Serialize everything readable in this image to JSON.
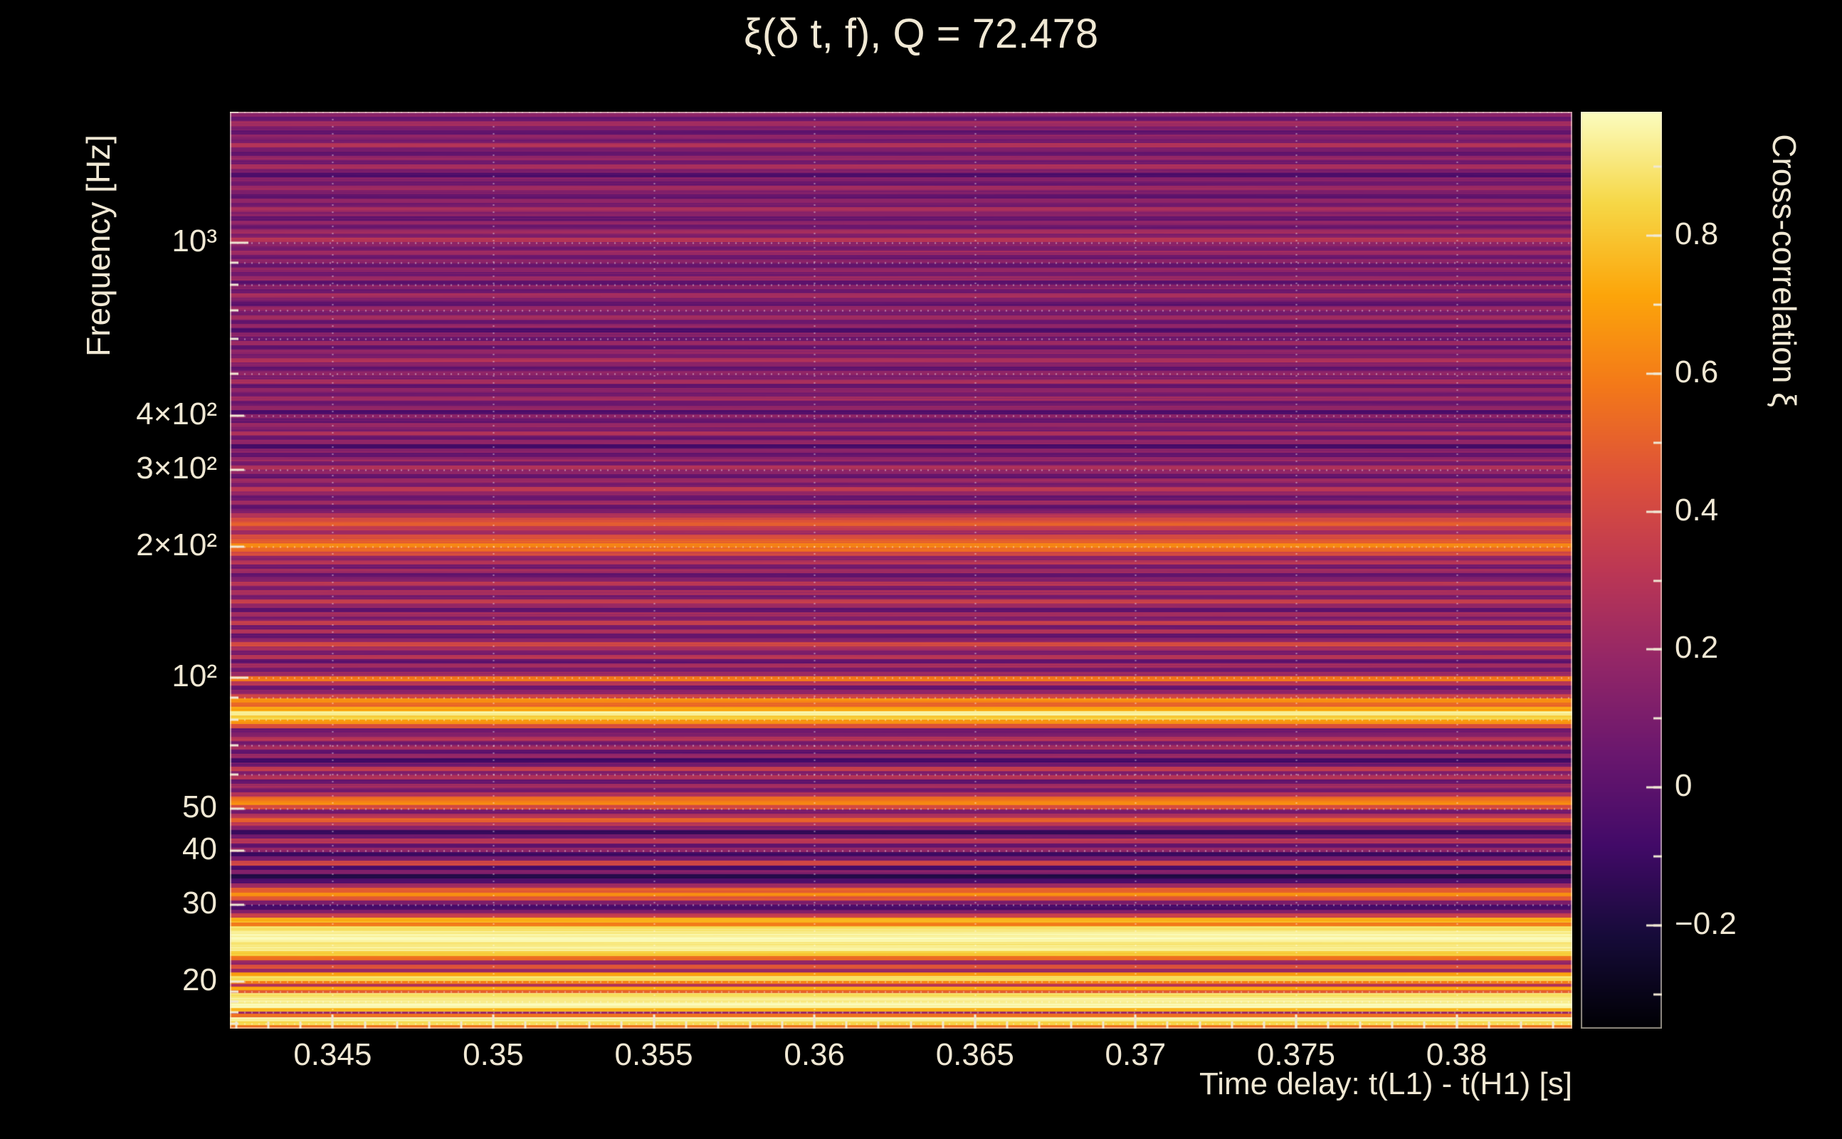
{
  "colors": {
    "background": "#000000",
    "text": "#f0e8d4",
    "grid": "#ffffff",
    "tick": "#f0e8d4"
  },
  "texture": {
    "row_noise": 0.03,
    "x_mod": 0.02
  },
  "chart_data": {
    "type": "heatmap",
    "title": "ξ(δ t, f), Q = 72.478",
    "xlabel": "Time delay: t(L1) - t(H1) [s]",
    "ylabel": "Frequency [Hz]",
    "zlabel": "Cross-correlation ξ",
    "x_range": [
      0.3418,
      0.3836
    ],
    "y_range_hz": [
      15.6,
      2000
    ],
    "y_scale": "log",
    "z_range": [
      -0.35,
      0.98
    ],
    "grid": true,
    "x_tick_values": [
      0.345,
      0.35,
      0.355,
      0.36,
      0.365,
      0.37,
      0.375,
      0.38
    ],
    "x_tick_labels": [
      "0.345",
      "0.35",
      "0.355",
      "0.36",
      "0.365",
      "0.37",
      "0.375",
      "0.38"
    ],
    "x_minor_step": 0.001,
    "y_tick_values": [
      20,
      30,
      40,
      50,
      100,
      200,
      300,
      400,
      1000
    ],
    "y_tick_labels": [
      "20",
      "30",
      "40",
      "50",
      "10²",
      "2×10²",
      "3×10²",
      "4×10²",
      "10³"
    ],
    "y_decades": [
      100,
      1000
    ],
    "y_minor_ticks": [
      16,
      17,
      18,
      19,
      60,
      70,
      80,
      90,
      500,
      600,
      700,
      800,
      900,
      2000
    ],
    "colorbar_tick_values": [
      -0.2,
      0,
      0.2,
      0.4,
      0.6,
      0.8
    ],
    "colorbar_tick_labels": [
      "−0.2",
      "0",
      "0.2",
      "0.4",
      "0.6",
      "0.8"
    ],
    "colorbar_minor_step": 0.1,
    "colormap": {
      "name": "inferno",
      "stops": [
        [
          0.0,
          [
            0,
            0,
            4
          ]
        ],
        [
          0.1,
          [
            22,
            11,
            57
          ]
        ],
        [
          0.2,
          [
            66,
            10,
            104
          ]
        ],
        [
          0.3,
          [
            106,
            23,
            110
          ]
        ],
        [
          0.4,
          [
            147,
            38,
            103
          ]
        ],
        [
          0.5,
          [
            188,
            55,
            84
          ]
        ],
        [
          0.6,
          [
            221,
            81,
            58
          ]
        ],
        [
          0.7,
          [
            243,
            120,
            25
          ]
        ],
        [
          0.8,
          [
            252,
            165,
            10
          ]
        ],
        [
          0.9,
          [
            246,
            215,
            70
          ]
        ],
        [
          1.0,
          [
            251,
            252,
            191
          ]
        ]
      ]
    },
    "profile_note": "cross-correlation xi vs frequency (bands are constant in time delay)",
    "profile": [
      [
        15.6,
        0.55
      ],
      [
        15.9,
        0.85
      ],
      [
        16.2,
        0.95
      ],
      [
        16.6,
        0.55
      ],
      [
        16.9,
        0.2
      ],
      [
        17.1,
        0.75
      ],
      [
        17.4,
        0.97
      ],
      [
        17.9,
        0.93
      ],
      [
        18.4,
        0.88
      ],
      [
        18.8,
        0.5
      ],
      [
        19.1,
        0.72
      ],
      [
        19.5,
        0.28
      ],
      [
        19.8,
        0.6
      ],
      [
        20.1,
        0.88
      ],
      [
        20.6,
        0.68
      ],
      [
        21.0,
        0.22
      ],
      [
        21.4,
        0.45
      ],
      [
        21.9,
        0.18
      ],
      [
        22.4,
        0.55
      ],
      [
        22.9,
        0.82
      ],
      [
        23.5,
        0.95
      ],
      [
        24.1,
        0.9
      ],
      [
        24.7,
        0.97
      ],
      [
        25.4,
        0.94
      ],
      [
        26.1,
        0.88
      ],
      [
        26.8,
        0.58
      ],
      [
        27.4,
        0.75
      ],
      [
        28.1,
        0.35
      ],
      [
        28.7,
        0.12
      ],
      [
        29.3,
        -0.08
      ],
      [
        30.0,
        0.1
      ],
      [
        30.7,
        0.45
      ],
      [
        31.4,
        0.65
      ],
      [
        32.1,
        0.5
      ],
      [
        32.9,
        0.22
      ],
      [
        33.7,
        -0.05
      ],
      [
        34.5,
        -0.18
      ],
      [
        35.3,
        0.12
      ],
      [
        36.1,
        -0.08
      ],
      [
        37.0,
        0.38
      ],
      [
        37.9,
        0.08
      ],
      [
        38.8,
        -0.1
      ],
      [
        39.7,
        0.18
      ],
      [
        40.6,
        0.02
      ],
      [
        41.6,
        0.3
      ],
      [
        42.6,
        0.08
      ],
      [
        43.6,
        -0.12
      ],
      [
        44.6,
        0.15
      ],
      [
        45.6,
        0.32
      ],
      [
        46.6,
        0.5
      ],
      [
        47.6,
        0.28
      ],
      [
        48.7,
        0.1
      ],
      [
        49.8,
        0.42
      ],
      [
        50.9,
        0.62
      ],
      [
        52.1,
        0.55
      ],
      [
        53.3,
        0.28
      ],
      [
        54.5,
        0.08
      ],
      [
        55.7,
        0.24
      ],
      [
        57.0,
        0.02
      ],
      [
        58.3,
        0.3
      ],
      [
        59.6,
        0.12
      ],
      [
        61.0,
        0.35
      ],
      [
        62.4,
        0.08
      ],
      [
        63.8,
        -0.08
      ],
      [
        65.3,
        0.2
      ],
      [
        66.8,
        0.02
      ],
      [
        68.3,
        0.25
      ],
      [
        69.9,
        0.08
      ],
      [
        71.5,
        0.3
      ],
      [
        73.1,
        0.12
      ],
      [
        74.8,
        0.05
      ],
      [
        76.5,
        0.45
      ],
      [
        78.3,
        0.65
      ],
      [
        80.1,
        0.82
      ],
      [
        81.9,
        0.95
      ],
      [
        83.8,
        0.72
      ],
      [
        85.7,
        0.52
      ],
      [
        87.7,
        0.65
      ],
      [
        89.7,
        0.38
      ],
      [
        91.8,
        0.18
      ],
      [
        93.9,
        0.02
      ],
      [
        96.1,
        0.3
      ],
      [
        98.3,
        0.58
      ],
      [
        100.6,
        0.22
      ],
      [
        102.9,
        0.08
      ],
      [
        105.3,
        0.25
      ],
      [
        107.7,
        0.02
      ],
      [
        110.2,
        0.3
      ],
      [
        112.7,
        0.1
      ],
      [
        115.3,
        0.24
      ],
      [
        118.0,
        0.42
      ],
      [
        120.7,
        0.15
      ],
      [
        123.5,
        0.02
      ],
      [
        126.3,
        0.26
      ],
      [
        129.2,
        0.08
      ],
      [
        132.2,
        0.35
      ],
      [
        135.3,
        0.12
      ],
      [
        138.4,
        0.24
      ],
      [
        141.6,
        0.02
      ],
      [
        144.9,
        0.2
      ],
      [
        148.2,
        0.35
      ],
      [
        151.6,
        0.08
      ],
      [
        155.1,
        0.25
      ],
      [
        158.7,
        0.1
      ],
      [
        162.4,
        0.3
      ],
      [
        166.1,
        0.12
      ],
      [
        169.9,
        0.02
      ],
      [
        173.8,
        0.22
      ],
      [
        177.8,
        0.08
      ],
      [
        181.9,
        0.3
      ],
      [
        186.1,
        0.15
      ],
      [
        190.4,
        0.4
      ],
      [
        194.8,
        0.55
      ],
      [
        199.3,
        0.62
      ],
      [
        203.9,
        0.5
      ],
      [
        208.6,
        0.42
      ],
      [
        213.4,
        0.22
      ],
      [
        218.3,
        0.35
      ],
      [
        223.3,
        0.5
      ],
      [
        228.4,
        0.42
      ],
      [
        233.7,
        0.28
      ],
      [
        239.1,
        0.12
      ],
      [
        244.6,
        0.02
      ],
      [
        250.2,
        0.22
      ],
      [
        256.0,
        0.05
      ],
      [
        261.9,
        0.18
      ],
      [
        267.9,
        0.32
      ],
      [
        274.1,
        0.1
      ],
      [
        280.4,
        0.22
      ],
      [
        286.9,
        0.02
      ],
      [
        293.5,
        0.15
      ],
      [
        300.3,
        0.28
      ],
      [
        307.2,
        0.08
      ],
      [
        314.3,
        0.2
      ],
      [
        321.5,
        0.02
      ],
      [
        328.9,
        0.15
      ],
      [
        336.5,
        -0.08
      ],
      [
        344.3,
        0.18
      ],
      [
        352.2,
        0.05
      ],
      [
        360.3,
        0.25
      ],
      [
        368.6,
        0.1
      ],
      [
        377.1,
        0.2
      ],
      [
        385.8,
        0.02
      ],
      [
        394.7,
        0.15
      ],
      [
        403.8,
        -0.05
      ],
      [
        413.1,
        0.18
      ],
      [
        422.6,
        0.05
      ],
      [
        432.3,
        0.22
      ],
      [
        442.3,
        0.08
      ],
      [
        452.5,
        0.18
      ],
      [
        462.9,
        0.02
      ],
      [
        473.6,
        0.25
      ],
      [
        484.5,
        0.1
      ],
      [
        495.7,
        0.18
      ],
      [
        507.1,
        0.02
      ],
      [
        518.8,
        0.15
      ],
      [
        530.8,
        0.28
      ],
      [
        543.0,
        0.08
      ],
      [
        555.5,
        0.18
      ],
      [
        568.3,
        0.02
      ],
      [
        581.4,
        0.2
      ],
      [
        594.8,
        0.05
      ],
      [
        608.5,
        0.15
      ],
      [
        622.5,
        -0.06
      ],
      [
        636.8,
        0.18
      ],
      [
        651.5,
        0.05
      ],
      [
        666.5,
        0.22
      ],
      [
        681.8,
        0.08
      ],
      [
        697.5,
        0.18
      ],
      [
        713.6,
        0.02
      ],
      [
        730.0,
        0.12
      ],
      [
        746.8,
        0.25
      ],
      [
        764.0,
        0.05
      ],
      [
        781.6,
        0.15
      ],
      [
        799.6,
        0.02
      ],
      [
        818.0,
        0.2
      ],
      [
        836.8,
        0.08
      ],
      [
        856.1,
        0.18
      ],
      [
        875.8,
        0.02
      ],
      [
        896.0,
        0.15
      ],
      [
        916.6,
        0.05
      ],
      [
        937.7,
        0.22
      ],
      [
        959.3,
        0.08
      ],
      [
        981.4,
        0.15
      ],
      [
        1004,
        0.3
      ],
      [
        1027,
        0.12
      ],
      [
        1051,
        0.22
      ],
      [
        1075,
        0.05
      ],
      [
        1100,
        0.18
      ],
      [
        1125,
        0.02
      ],
      [
        1151,
        0.15
      ],
      [
        1178,
        0.25
      ],
      [
        1205,
        0.08
      ],
      [
        1233,
        0.18
      ],
      [
        1261,
        0.02
      ],
      [
        1290,
        0.12
      ],
      [
        1320,
        0.22
      ],
      [
        1350,
        0.05
      ],
      [
        1381,
        0.15
      ],
      [
        1413,
        -0.05
      ],
      [
        1446,
        0.12
      ],
      [
        1479,
        0.25
      ],
      [
        1513,
        0.08
      ],
      [
        1548,
        0.18
      ],
      [
        1584,
        0.02
      ],
      [
        1621,
        0.12
      ],
      [
        1658,
        0.28
      ],
      [
        1696,
        0.08
      ],
      [
        1735,
        0.18
      ],
      [
        1775,
        0.02
      ],
      [
        1816,
        0.12
      ],
      [
        1858,
        0.22
      ],
      [
        1901,
        0.05
      ],
      [
        1945,
        0.15
      ],
      [
        1990,
        0.25
      ]
    ]
  }
}
